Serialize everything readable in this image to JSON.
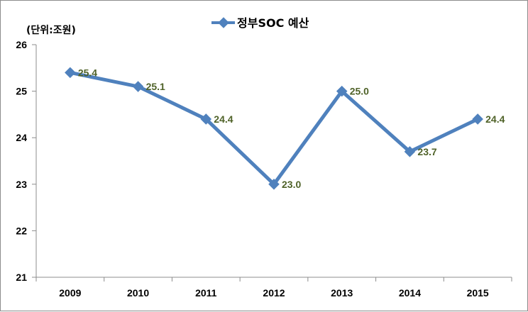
{
  "chart_data": {
    "type": "line",
    "title": "",
    "unit_label": "(단위:조원)",
    "xlabel": "",
    "ylabel": "",
    "categories": [
      "2009",
      "2010",
      "2011",
      "2012",
      "2013",
      "2014",
      "2015"
    ],
    "series": [
      {
        "name": "정부SOC 예산",
        "values": [
          25.4,
          25.1,
          24.4,
          23.0,
          25.0,
          23.7,
          24.4
        ],
        "labels": [
          "25.4",
          "25.1",
          "24.4",
          "23.0",
          "25.0",
          "23.7",
          "24.4"
        ],
        "color": "#4f81bd",
        "label_color": "#4f6228"
      }
    ],
    "ylim": [
      21,
      26
    ],
    "yticks": [
      "21",
      "22",
      "23",
      "24",
      "25",
      "26"
    ],
    "grid": false,
    "legend": "top-center"
  }
}
